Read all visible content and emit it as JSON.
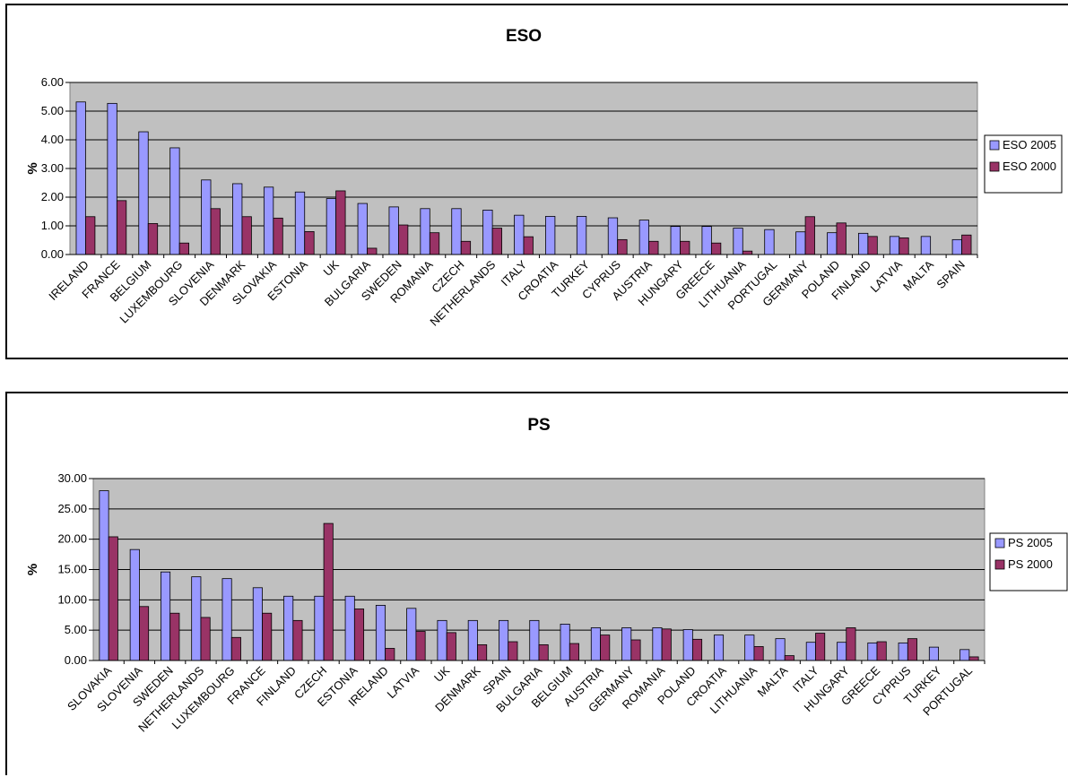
{
  "chart_data": [
    {
      "type": "bar",
      "title": "ESO",
      "ylabel": "%",
      "xlabel": "",
      "ylim": [
        0,
        6
      ],
      "yticks": [
        "0.00",
        "1.00",
        "2.00",
        "3.00",
        "4.00",
        "5.00",
        "6.00"
      ],
      "grid": true,
      "legend_position": "right",
      "categories": [
        "IRELAND",
        "FRANCE",
        "BELGIUM",
        "LUXEMBOURG",
        "SLOVENIA",
        "DENMARK",
        "SLOVAKIA",
        "ESTONIA",
        "UK",
        "BULGARIA",
        "SWEDEN",
        "ROMANIA",
        "CZECH",
        "NETHERLANDS",
        "ITALY",
        "CROATIA",
        "TURKEY",
        "CYPRUS",
        "AUSTRIA",
        "HUNGARY",
        "GREECE",
        "LITHUANIA",
        "PORTUGAL",
        "GERMANY",
        "POLAND",
        "FINLAND",
        "LATVIA",
        "MALTA",
        "SPAIN"
      ],
      "series": [
        {
          "name": "ESO 2005",
          "color": "#9999ff",
          "values": [
            5.32,
            5.27,
            4.28,
            3.72,
            2.6,
            2.47,
            2.35,
            2.18,
            1.95,
            1.78,
            1.66,
            1.6,
            1.6,
            1.55,
            1.37,
            1.33,
            1.33,
            1.28,
            1.2,
            0.98,
            0.98,
            0.92,
            0.87,
            0.79,
            0.76,
            0.74,
            0.63,
            0.63,
            0.52
          ]
        },
        {
          "name": "ESO 2000",
          "color": "#993366",
          "values": [
            1.32,
            1.88,
            1.08,
            0.4,
            1.6,
            1.32,
            1.27,
            0.8,
            2.22,
            0.22,
            1.03,
            0.76,
            0.46,
            0.92,
            0.62,
            null,
            null,
            0.52,
            0.46,
            0.46,
            0.4,
            0.12,
            null,
            1.32,
            1.1,
            0.63,
            0.58,
            null,
            0.68
          ]
        }
      ]
    },
    {
      "type": "bar",
      "title": "PS",
      "ylabel": "%",
      "xlabel": "",
      "ylim": [
        0,
        30
      ],
      "yticks": [
        "0.00",
        "5.00",
        "10.00",
        "15.00",
        "20.00",
        "25.00",
        "30.00"
      ],
      "grid": true,
      "legend_position": "right",
      "categories": [
        "SLOVAKIA",
        "SLOVENIA",
        "SWEDEN",
        "NETHERLANDS",
        "LUXEMBOURG",
        "FRANCE",
        "FINLAND",
        "CZECH",
        "ESTONIA",
        "IRELAND",
        "LATVIA",
        "UK",
        "DENMARK",
        "SPAIN",
        "BULGARIA",
        "BELGIUM",
        "AUSTRIA",
        "GERMANY",
        "ROMANIA",
        "POLAND",
        "CROATIA",
        "LITHUANIA",
        "MALTA",
        "ITALY",
        "HUNGARY",
        "GREECE",
        "CYPRUS",
        "TURKEY",
        "PORTUGAL"
      ],
      "series": [
        {
          "name": "PS 2005",
          "color": "#9999ff",
          "values": [
            28.0,
            18.3,
            14.6,
            13.8,
            13.5,
            12.0,
            10.6,
            10.6,
            10.6,
            9.1,
            8.6,
            6.6,
            6.6,
            6.6,
            6.6,
            6.0,
            5.4,
            5.4,
            5.4,
            5.1,
            4.2,
            4.2,
            3.6,
            3.0,
            3.0,
            2.9,
            2.9,
            2.2,
            1.8
          ]
        },
        {
          "name": "PS 2000",
          "color": "#993366",
          "values": [
            20.4,
            8.9,
            7.8,
            7.1,
            3.8,
            7.8,
            6.6,
            22.6,
            8.5,
            2.0,
            4.8,
            4.6,
            2.6,
            3.1,
            2.6,
            2.8,
            4.2,
            3.4,
            5.2,
            3.5,
            null,
            2.3,
            0.8,
            4.5,
            5.4,
            3.1,
            3.6,
            null,
            0.6
          ]
        }
      ]
    }
  ]
}
